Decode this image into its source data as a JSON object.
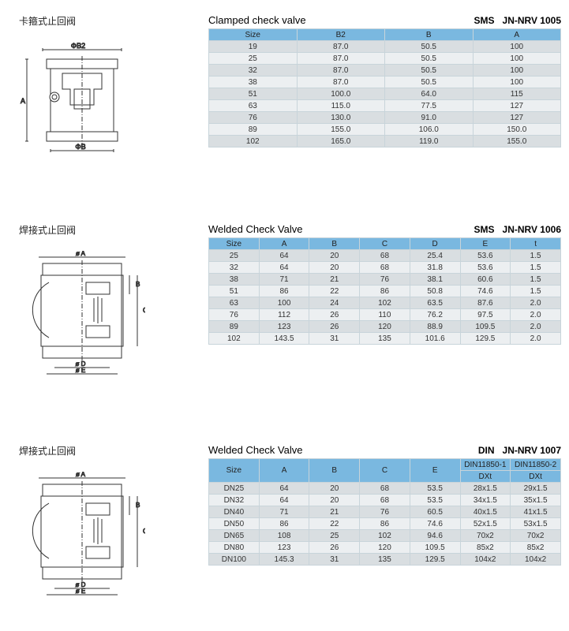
{
  "sections": [
    {
      "cn_title": "卡箍式止回阀",
      "en_title": "Clamped check valve",
      "std": "SMS",
      "code": "JN-NRV 1005",
      "diagram": "clamped",
      "table": {
        "type": "simple",
        "columns": [
          "Size",
          "B2",
          "B",
          "A"
        ],
        "rows": [
          [
            "19",
            "87.0",
            "50.5",
            "100"
          ],
          [
            "25",
            "87.0",
            "50.5",
            "100"
          ],
          [
            "32",
            "87.0",
            "50.5",
            "100"
          ],
          [
            "38",
            "87.0",
            "50.5",
            "100"
          ],
          [
            "51",
            "100.0",
            "64.0",
            "115"
          ],
          [
            "63",
            "115.0",
            "77.5",
            "127"
          ],
          [
            "76",
            "130.0",
            "91.0",
            "127"
          ],
          [
            "89",
            "155.0",
            "106.0",
            "150.0"
          ],
          [
            "102",
            "165.0",
            "119.0",
            "155.0"
          ]
        ]
      }
    },
    {
      "cn_title": "焊接式止回阀",
      "en_title": "Welded Check  Valve",
      "std": "SMS",
      "code": "JN-NRV 1006",
      "diagram": "welded",
      "table": {
        "type": "simple",
        "columns": [
          "Size",
          "A",
          "B",
          "C",
          "D",
          "E",
          "t"
        ],
        "rows": [
          [
            "25",
            "64",
            "20",
            "68",
            "25.4",
            "53.6",
            "1.5"
          ],
          [
            "32",
            "64",
            "20",
            "68",
            "31.8",
            "53.6",
            "1.5"
          ],
          [
            "38",
            "71",
            "21",
            "76",
            "38.1",
            "60.6",
            "1.5"
          ],
          [
            "51",
            "86",
            "22",
            "86",
            "50.8",
            "74.6",
            "1.5"
          ],
          [
            "63",
            "100",
            "24",
            "102",
            "63.5",
            "87.6",
            "2.0"
          ],
          [
            "76",
            "112",
            "26",
            "110",
            "76.2",
            "97.5",
            "2.0"
          ],
          [
            "89",
            "123",
            "26",
            "120",
            "88.9",
            "109.5",
            "2.0"
          ],
          [
            "102",
            "143.5",
            "31",
            "135",
            "101.6",
            "129.5",
            "2.0"
          ]
        ]
      }
    },
    {
      "cn_title": "焊接式止回阀",
      "en_title": "Welded Check  Valve",
      "std": "DIN",
      "code": "JN-NRV 1007",
      "diagram": "welded",
      "table": {
        "type": "grouped",
        "top_columns": [
          "Size",
          "A",
          "B",
          "C",
          "E",
          "DIN11850-1",
          "DIN11850-2"
        ],
        "sub_columns": [
          "",
          "",
          "",
          "",
          "",
          "DXt",
          "DXt"
        ],
        "rows": [
          [
            "DN25",
            "64",
            "20",
            "68",
            "53.5",
            "28x1.5",
            "29x1.5"
          ],
          [
            "DN32",
            "64",
            "20",
            "68",
            "53.5",
            "34x1.5",
            "35x1.5"
          ],
          [
            "DN40",
            "71",
            "21",
            "76",
            "60.5",
            "40x1.5",
            "41x1.5"
          ],
          [
            "DN50",
            "86",
            "22",
            "86",
            "74.6",
            "52x1.5",
            "53x1.5"
          ],
          [
            "DN65",
            "108",
            "25",
            "102",
            "94.6",
            "70x2",
            "70x2"
          ],
          [
            "DN80",
            "123",
            "26",
            "120",
            "109.5",
            "85x2",
            "85x2"
          ],
          [
            "DN100",
            "145.3",
            "31",
            "135",
            "129.5",
            "104x2",
            "104x2"
          ]
        ]
      }
    }
  ],
  "style": {
    "header_bg": "#7ab8e0",
    "row_odd_bg": "#d9dee1",
    "row_even_bg": "#eceff1",
    "border_color": "#c8d4da",
    "font_size": 10,
    "cn_title_size": 12,
    "en_title_size": 13
  }
}
